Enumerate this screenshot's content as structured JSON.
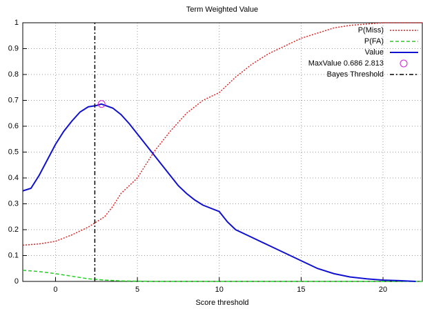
{
  "chart_data": {
    "type": "line",
    "title": "Term Weighted Value",
    "xlabel": "Score threshold",
    "xlim": [
      -2,
      22.4
    ],
    "xticks": [
      0,
      5,
      10,
      15,
      20
    ],
    "ylim": [
      0,
      1
    ],
    "yticks": [
      0,
      0.1,
      0.2,
      0.3,
      0.4,
      0.5,
      0.6,
      0.7,
      0.8,
      0.9,
      1
    ],
    "grid": true,
    "legend": "top-right",
    "series": [
      {
        "name": "P(Miss)",
        "color": "#e02020",
        "style": "dotted",
        "x": [
          -2,
          -1,
          0,
          1,
          2,
          2.5,
          3,
          3.5,
          4,
          4.5,
          5,
          5.5,
          6,
          6.5,
          7,
          8,
          9,
          10,
          11,
          12,
          13,
          14,
          15,
          16,
          17,
          18,
          19,
          20,
          22.4
        ],
        "values": [
          0.14,
          0.145,
          0.155,
          0.18,
          0.21,
          0.23,
          0.25,
          0.29,
          0.34,
          0.37,
          0.4,
          0.45,
          0.5,
          0.54,
          0.58,
          0.65,
          0.7,
          0.73,
          0.79,
          0.84,
          0.88,
          0.91,
          0.94,
          0.96,
          0.98,
          0.99,
          0.995,
          1,
          1
        ]
      },
      {
        "name": "P(FA)",
        "color": "#20d020",
        "style": "dashed",
        "x": [
          -2,
          -1,
          0,
          1,
          2,
          3,
          4,
          5,
          6,
          22.4
        ],
        "values": [
          0.043,
          0.038,
          0.03,
          0.02,
          0.01,
          0.005,
          0.002,
          0.001,
          0,
          0
        ]
      },
      {
        "name": "Value",
        "color": "#1010d0",
        "style": "solid",
        "x": [
          -2,
          -1.5,
          -1,
          -0.5,
          0,
          0.5,
          1,
          1.5,
          2,
          2.5,
          2.8,
          3.5,
          4,
          4.5,
          5,
          5.5,
          6,
          6.5,
          7,
          7.5,
          8,
          8.5,
          9,
          10,
          10.5,
          11,
          12,
          13,
          14,
          15,
          16,
          17,
          18,
          19,
          20,
          21,
          22
        ],
        "values": [
          0.35,
          0.36,
          0.41,
          0.47,
          0.53,
          0.58,
          0.62,
          0.655,
          0.675,
          0.68,
          0.686,
          0.67,
          0.645,
          0.61,
          0.57,
          0.53,
          0.49,
          0.45,
          0.41,
          0.37,
          0.34,
          0.315,
          0.295,
          0.27,
          0.23,
          0.2,
          0.17,
          0.14,
          0.11,
          0.08,
          0.05,
          0.03,
          0.017,
          0.01,
          0.005,
          0.003,
          0
        ]
      },
      {
        "name": "MaxValue 0.686 2.813",
        "color": "#d020d0",
        "style": "marker",
        "x": [
          2.813
        ],
        "values": [
          0.686
        ]
      },
      {
        "name": "Bayes Threshold",
        "color": "#000000",
        "style": "dashdot",
        "x": [
          2.4,
          2.4
        ],
        "values": [
          0,
          1
        ]
      }
    ]
  }
}
